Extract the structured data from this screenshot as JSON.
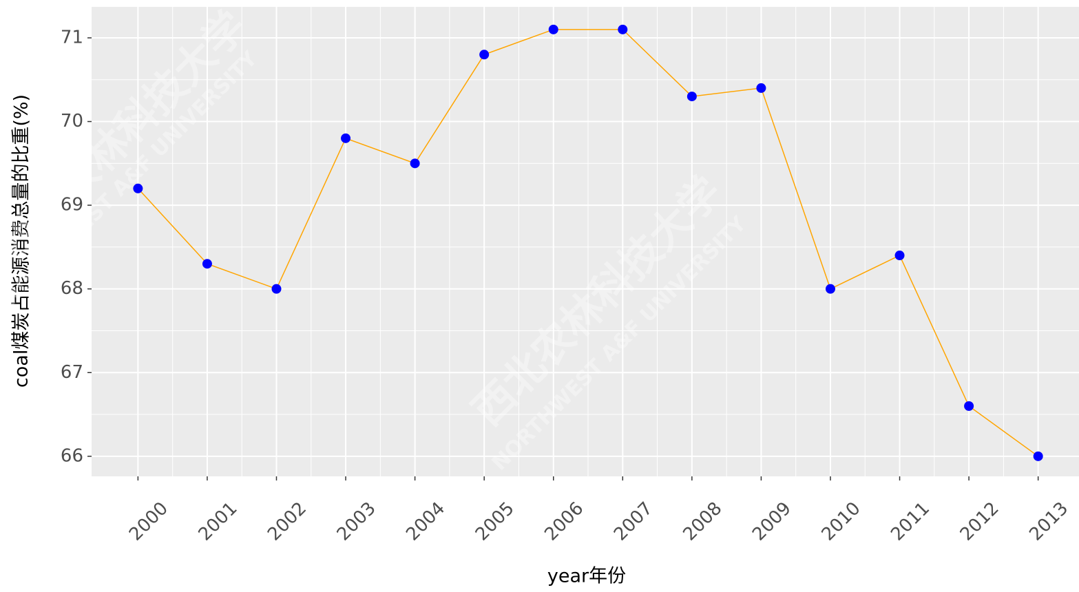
{
  "chart_data": {
    "type": "line",
    "x_label": "year年份",
    "y_label": "coal煤炭占能源消费总量的比重(%)",
    "watermark": [
      "西北农林科技大学",
      "NORTHWEST A&F UNIVERSITY"
    ],
    "x": [
      2000,
      2001,
      2002,
      2003,
      2004,
      2005,
      2006,
      2007,
      2008,
      2009,
      2010,
      2011,
      2012,
      2013
    ],
    "series": [
      {
        "color": "#FFA500",
        "point_color": "#0000FF",
        "values": [
          69.2,
          68.3,
          68.0,
          69.8,
          69.5,
          70.8,
          71.1,
          71.1,
          70.3,
          70.4,
          68.0,
          68.4,
          66.6,
          66.0
        ]
      }
    ],
    "xlim": [
      1999.33,
      2013.59
    ],
    "xticks": [
      2000,
      2001,
      2002,
      2003,
      2004,
      2005,
      2006,
      2007,
      2008,
      2009,
      2010,
      2011,
      2012,
      2013
    ],
    "ylim": [
      65.76,
      71.37
    ],
    "yticks": [
      66,
      67,
      68,
      69,
      70,
      71
    ],
    "grid": true
  }
}
